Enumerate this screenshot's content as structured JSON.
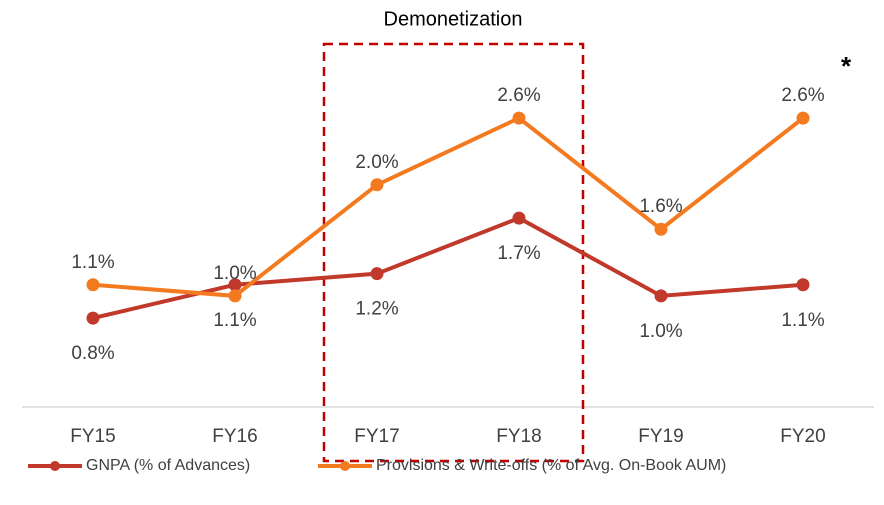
{
  "chart_data": {
    "type": "line",
    "annotations": [
      "Demonetization",
      "*"
    ],
    "categories": [
      "FY15",
      "FY16",
      "FY17",
      "FY18",
      "FY19",
      "FY20"
    ],
    "series": [
      {
        "name": "GNPA (% of Advances)",
        "color": "#c0392b",
        "values": [
          0.8,
          1.1,
          1.2,
          1.7,
          1.0,
          1.1
        ],
        "value_labels": [
          "0.8%",
          "1.1%",
          "1.2%",
          "1.7%",
          "1.0%",
          "1.1%"
        ]
      },
      {
        "name": "Provisions & Write-offs (% of Avg. On-Book AUM)",
        "color": "#f47a20",
        "values": [
          1.1,
          1.0,
          2.0,
          2.6,
          1.6,
          2.6
        ],
        "value_labels": [
          "1.1%",
          "1.0%",
          "2.0%",
          "2.6%",
          "1.6%",
          "2.6%"
        ]
      }
    ],
    "ylim": [
      0,
      3.6
    ]
  }
}
